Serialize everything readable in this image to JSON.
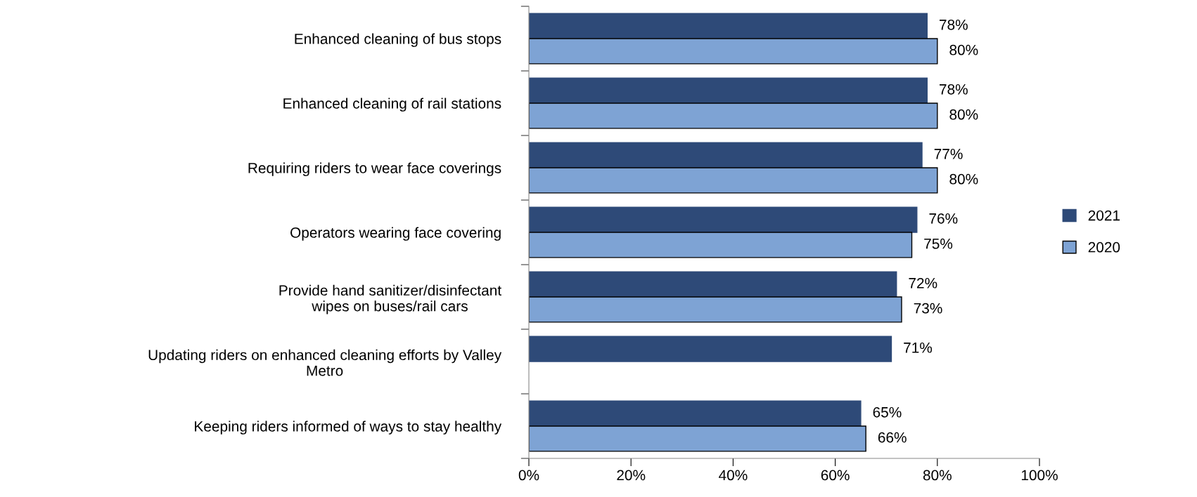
{
  "chart_data": {
    "type": "bar",
    "orientation": "horizontal",
    "categories": [
      "Enhanced cleaning of bus stops",
      "Enhanced cleaning of rail stations",
      "Requiring riders to wear face coverings",
      "Operators wearing face covering",
      "Provide hand sanitizer/disinfectant\nwipes on buses/rail cars",
      "Updating riders on enhanced cleaning efforts by Valley\nMetro",
      "Keeping riders informed of ways to stay healthy"
    ],
    "series": [
      {
        "name": "2021",
        "color": "#2e4a78",
        "values": [
          78,
          78,
          77,
          76,
          72,
          71,
          65
        ],
        "value_labels": [
          "78%",
          "78%",
          "77%",
          "76%",
          "72%",
          "71%",
          "65%"
        ]
      },
      {
        "name": "2020",
        "color": "#7ea3d4",
        "values": [
          80,
          80,
          80,
          75,
          73,
          null,
          66
        ],
        "value_labels": [
          "80%",
          "80%",
          "80%",
          "75%",
          "73%",
          null,
          "66%"
        ]
      }
    ],
    "xlim": [
      0,
      100
    ],
    "xticks": [
      {
        "value": 0,
        "label": "0%"
      },
      {
        "value": 20,
        "label": "20%"
      },
      {
        "value": 40,
        "label": "40%"
      },
      {
        "value": 60,
        "label": "60%"
      },
      {
        "value": 80,
        "label": "80%"
      },
      {
        "value": 100,
        "label": "100%"
      }
    ],
    "legend": "right",
    "grid": false
  }
}
